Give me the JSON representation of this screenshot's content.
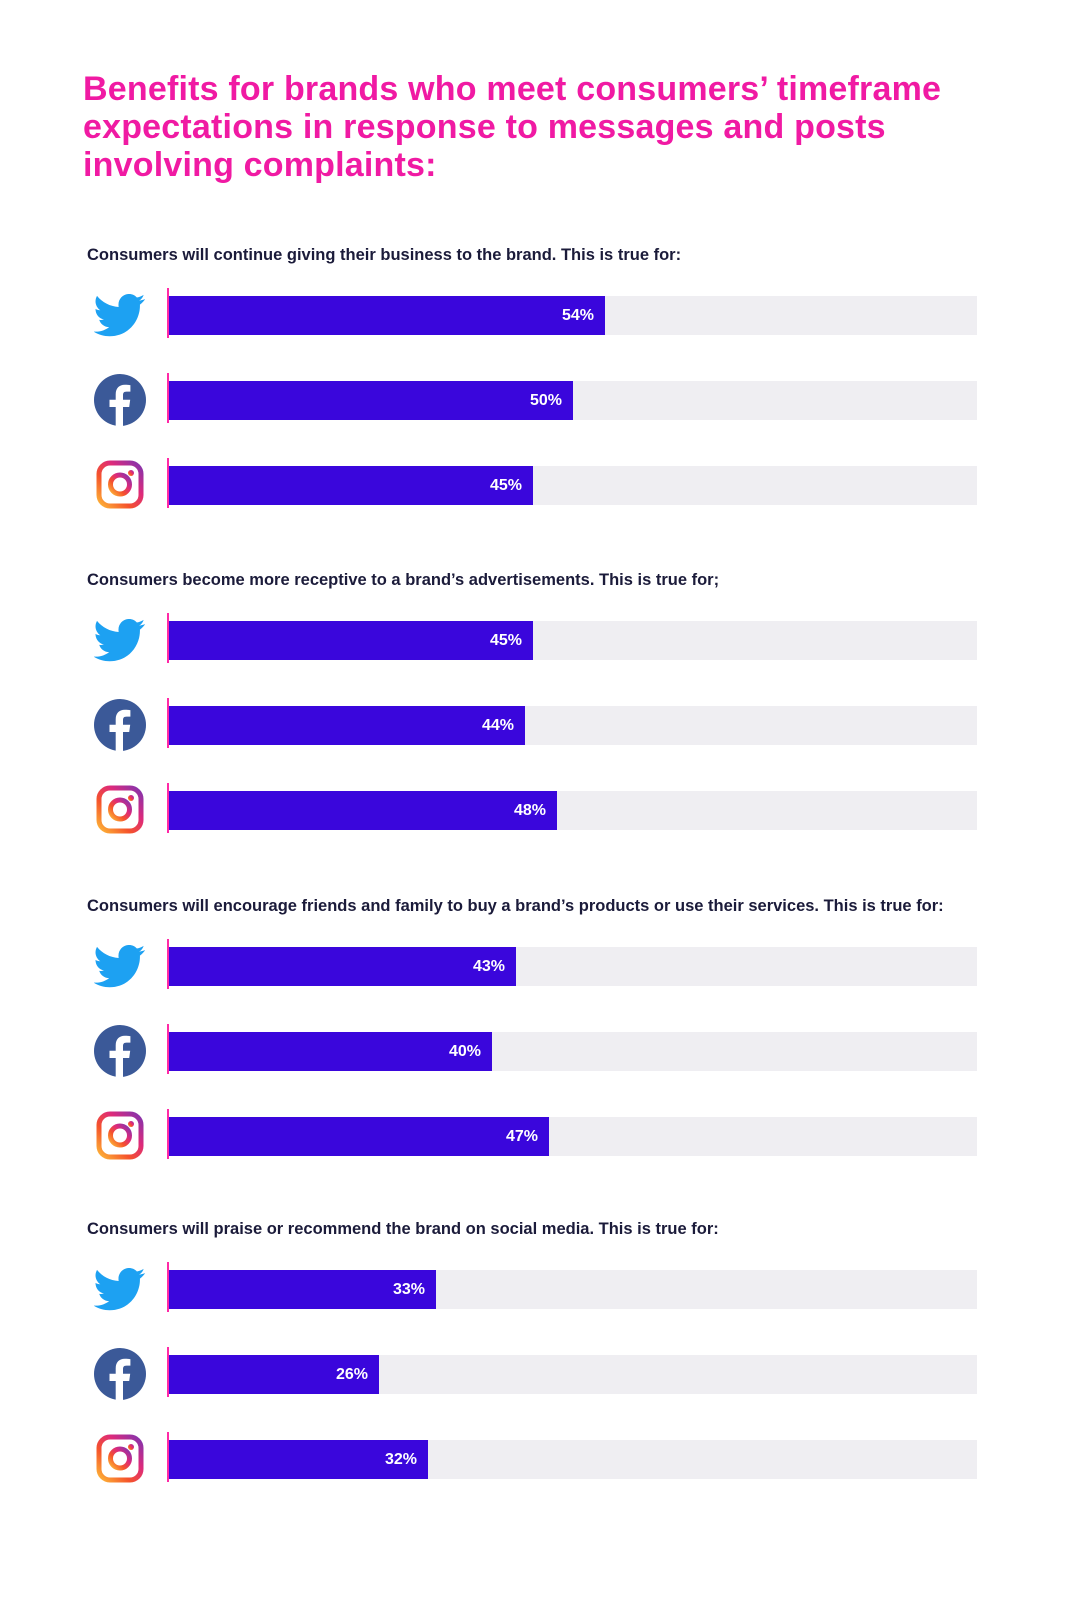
{
  "title": "Benefits for brands who meet consumers’ timeframe expectations in response to messages and posts involving complaints:",
  "colors": {
    "title": "#f01aa3",
    "bar": "#3a06dc",
    "track": "#efeef2",
    "axis": "#ff2aa6",
    "twitter": "#1da1f2",
    "facebook": "#3b5998",
    "label_text": "#1b1b3a"
  },
  "chart_data": [
    {
      "type": "bar",
      "orientation": "horizontal",
      "title": "Consumers will continue giving their business to the brand. This is true for:",
      "categories": [
        "twitter-icon",
        "facebook-icon",
        "instagram-icon"
      ],
      "values": [
        54,
        50,
        45
      ],
      "value_labels": [
        "54%",
        "50%",
        "45%"
      ],
      "xlim": [
        0,
        100
      ],
      "grid": false
    },
    {
      "type": "bar",
      "orientation": "horizontal",
      "title": "Consumers become more receptive to a brand’s advertisements. This is true for;",
      "categories": [
        "twitter-icon",
        "facebook-icon",
        "instagram-icon"
      ],
      "values": [
        45,
        44,
        48
      ],
      "value_labels": [
        "45%",
        "44%",
        "48%"
      ],
      "xlim": [
        0,
        100
      ],
      "grid": false
    },
    {
      "type": "bar",
      "orientation": "horizontal",
      "title": "Consumers will encourage friends and family to buy a brand’s products or use their services. This is true for:",
      "categories": [
        "twitter-icon",
        "facebook-icon",
        "instagram-icon"
      ],
      "values": [
        43,
        40,
        47
      ],
      "value_labels": [
        "43%",
        "40%",
        "47%"
      ],
      "xlim": [
        0,
        100
      ],
      "grid": false
    },
    {
      "type": "bar",
      "orientation": "horizontal",
      "title": "Consumers will praise or recommend the brand on social media. This is true for:",
      "categories": [
        "twitter-icon",
        "facebook-icon",
        "instagram-icon"
      ],
      "values": [
        33,
        26,
        32
      ],
      "value_labels": [
        "33%",
        "26%",
        "32%"
      ],
      "xlim": [
        0,
        100
      ],
      "grid": false
    }
  ]
}
